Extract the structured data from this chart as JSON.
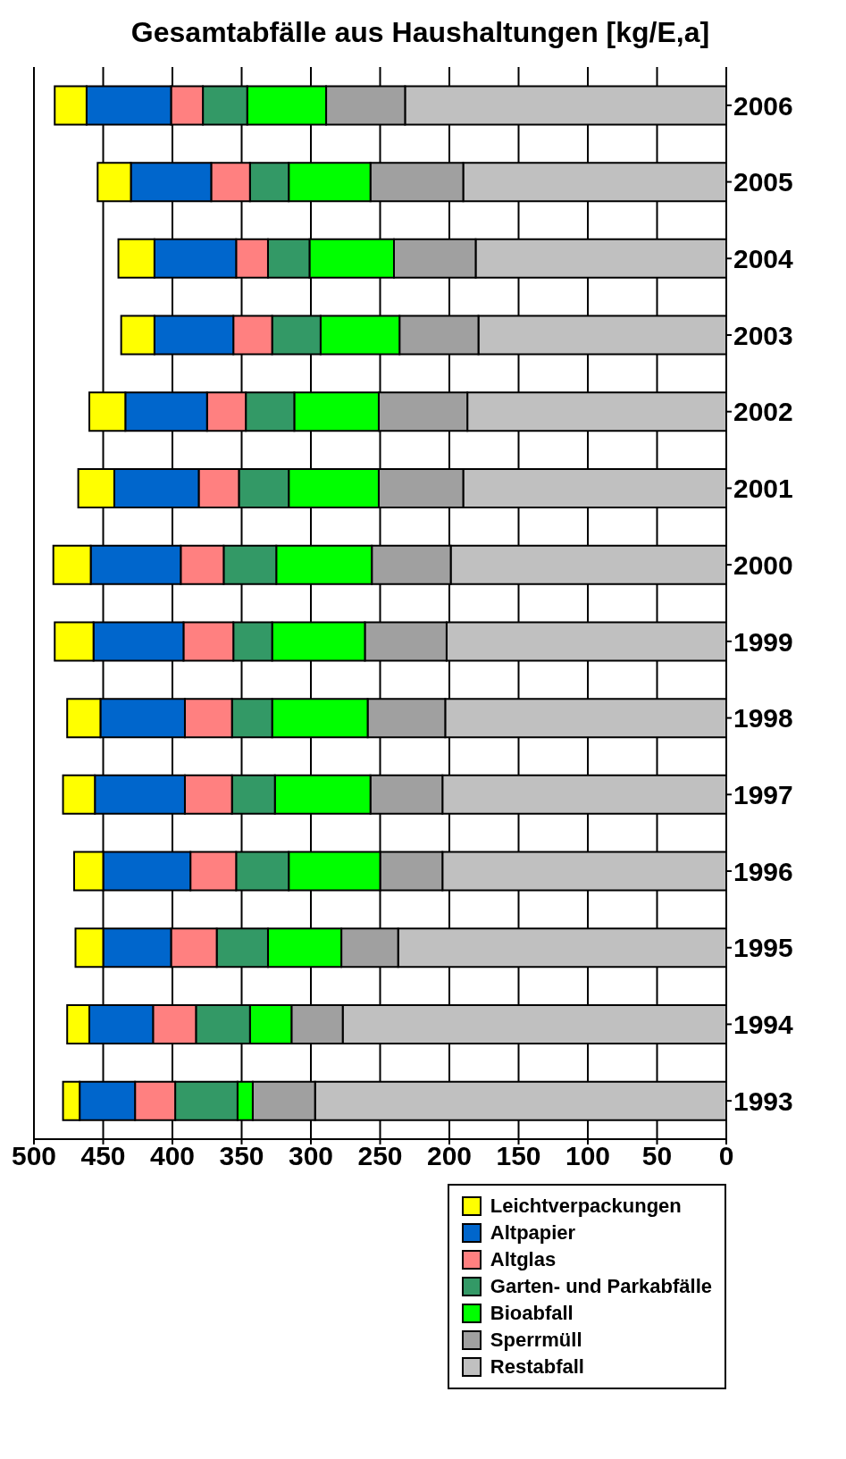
{
  "chart_data": {
    "type": "bar",
    "orientation": "horizontal",
    "stacked": true,
    "title": "Gesamtabfälle aus Haushaltungen [kg/E,a]",
    "categories": [
      "2006",
      "2005",
      "2004",
      "2003",
      "2002",
      "2001",
      "2000",
      "1999",
      "1998",
      "1997",
      "1996",
      "1995",
      "1994",
      "1993"
    ],
    "series": [
      {
        "name": "Restabfall",
        "color": "#c0c0c0",
        "values": [
          232,
          190,
          181,
          179,
          187,
          190,
          199,
          202,
          203,
          205,
          205,
          237,
          277,
          297
        ]
      },
      {
        "name": "Sperrmüll",
        "color": "#a0a0a0",
        "values": [
          57,
          67,
          59,
          57,
          64,
          61,
          57,
          59,
          56,
          52,
          45,
          41,
          37,
          45
        ]
      },
      {
        "name": "Bioabfall",
        "color": "#00ff00",
        "values": [
          57,
          59,
          61,
          57,
          61,
          65,
          69,
          67,
          69,
          69,
          66,
          53,
          30,
          11
        ]
      },
      {
        "name": "Garten- und Parkabfälle",
        "color": "#339966",
        "values": [
          32,
          28,
          30,
          35,
          35,
          36,
          38,
          28,
          29,
          31,
          38,
          37,
          39,
          45
        ]
      },
      {
        "name": "Altglas",
        "color": "#ff8080",
        "values": [
          23,
          28,
          23,
          28,
          28,
          29,
          31,
          36,
          34,
          34,
          33,
          33,
          31,
          29
        ]
      },
      {
        "name": "Altpapier",
        "color": "#0066cc",
        "values": [
          61,
          58,
          59,
          57,
          59,
          61,
          65,
          65,
          61,
          65,
          63,
          49,
          46,
          40
        ]
      },
      {
        "name": "Leichtverpackungen",
        "color": "#ffff00",
        "values": [
          23,
          24,
          26,
          24,
          26,
          26,
          27,
          28,
          24,
          23,
          21,
          20,
          16,
          12
        ]
      }
    ],
    "xlim": [
      500,
      0
    ],
    "xticks": [
      500,
      450,
      400,
      350,
      300,
      250,
      200,
      150,
      100,
      50,
      0
    ],
    "grid": "x",
    "legend": "bottom right"
  }
}
